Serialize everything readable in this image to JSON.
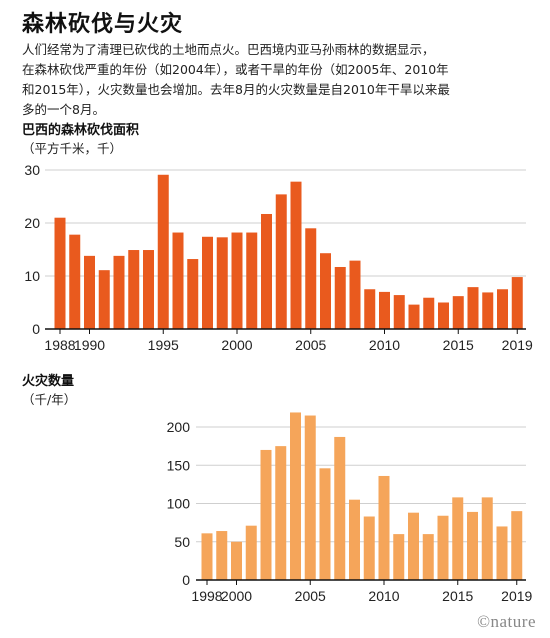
{
  "header": {
    "title": "森林砍伐与火灾",
    "description_lines": [
      "人们经常为了清理已砍伐的土地而点火。巴西境内亚马孙雨林的数据显示，",
      "在森林砍伐严重的年份（如2004年），或者干旱的年份（如2005年、2010年",
      "和2015年），火灾数量也会增加。去年8月的火灾数量是自2010年干旱以来最",
      "多的一个8月。"
    ]
  },
  "logo": "©nature",
  "chart_data": [
    {
      "type": "bar",
      "title": "巴西的森林砍伐面积",
      "ylabel": "（平方千米，千）",
      "color": "#e95a1e",
      "x": [
        1988,
        1989,
        1990,
        1991,
        1992,
        1993,
        1994,
        1995,
        1996,
        1997,
        1998,
        1999,
        2000,
        2001,
        2002,
        2003,
        2004,
        2005,
        2006,
        2007,
        2008,
        2009,
        2010,
        2011,
        2012,
        2013,
        2014,
        2015,
        2016,
        2017,
        2018,
        2019
      ],
      "values": [
        21,
        17.8,
        13.8,
        11.1,
        13.8,
        14.9,
        14.9,
        29.1,
        18.2,
        13.2,
        17.4,
        17.3,
        18.2,
        18.2,
        21.7,
        25.4,
        27.8,
        19,
        14.3,
        11.7,
        12.9,
        7.5,
        7,
        6.4,
        4.6,
        5.9,
        5,
        6.2,
        7.9,
        6.9,
        7.5,
        9.8
      ],
      "xticks": [
        1988,
        1990,
        1995,
        2000,
        2005,
        2010,
        2015,
        2019
      ],
      "yticks": [
        0,
        10,
        20,
        30
      ],
      "ylim": [
        0,
        30
      ],
      "grid": true
    },
    {
      "type": "bar",
      "title": "火灾数量",
      "ylabel": "（千/年）",
      "color": "#f5a55a",
      "x": [
        1998,
        1999,
        2000,
        2001,
        2002,
        2003,
        2004,
        2005,
        2006,
        2007,
        2008,
        2009,
        2010,
        2011,
        2012,
        2013,
        2014,
        2015,
        2016,
        2017,
        2018,
        2019
      ],
      "values": [
        61,
        64,
        50,
        71,
        170,
        175,
        219,
        215,
        146,
        187,
        105,
        83,
        136,
        60,
        88,
        60,
        84,
        108,
        89,
        108,
        70,
        90
      ],
      "xticks": [
        1998,
        2000,
        2005,
        2010,
        2015,
        2019
      ],
      "yticks": [
        0,
        50,
        100,
        150,
        200
      ],
      "ylim": [
        0,
        225
      ],
      "grid": true
    }
  ]
}
